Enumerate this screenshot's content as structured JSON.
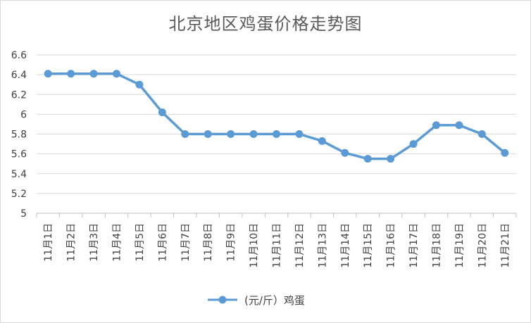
{
  "chart_data": {
    "type": "line",
    "title": "北京地区鸡蛋价格走势图",
    "xlabel": "",
    "ylabel": "",
    "ylim": [
      5,
      6.6
    ],
    "yticks": [
      "5",
      "5.2",
      "5.4",
      "5.6",
      "5.8",
      "6",
      "6.2",
      "6.4",
      "6.6"
    ],
    "categories": [
      "11月1日",
      "11月2日",
      "11月3日",
      "11月4日",
      "11月5日",
      "11月6日",
      "11月7日",
      "11月8日",
      "11月9日",
      "11月10日",
      "11月11日",
      "11月12日",
      "11月13日",
      "11月14日",
      "11月15日",
      "11月16日",
      "11月17日",
      "11月18日",
      "11月19日",
      "11月20日",
      "11月21日"
    ],
    "series": [
      {
        "name": "(元/斤）鸡蛋",
        "color": "#5b9bd5",
        "values": [
          6.41,
          6.41,
          6.41,
          6.41,
          6.3,
          6.02,
          5.8,
          5.8,
          5.8,
          5.8,
          5.8,
          5.8,
          5.73,
          5.61,
          5.55,
          5.55,
          5.7,
          5.89,
          5.89,
          5.8,
          5.61
        ]
      }
    ],
    "grid": true,
    "legend": "bottom"
  }
}
